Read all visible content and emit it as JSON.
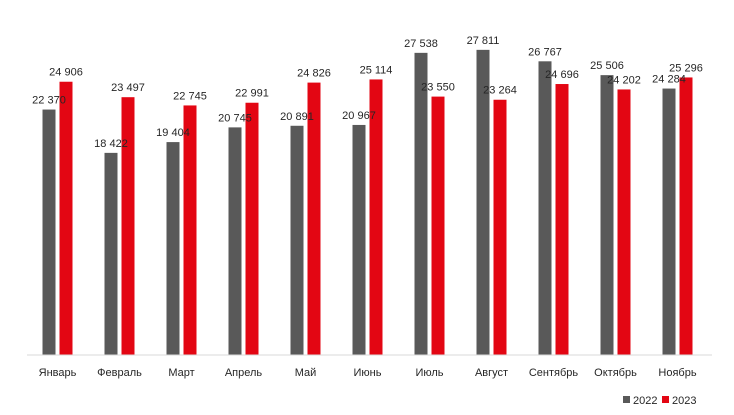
{
  "chart_data": {
    "type": "bar",
    "categories": [
      "Январь",
      "Февраль",
      "Март",
      "Апрель",
      "Май",
      "Июнь",
      "Июль",
      "Август",
      "Сентябрь",
      "Октябрь",
      "Ноябрь"
    ],
    "series": [
      {
        "name": "2022",
        "color": "#595959",
        "values": [
          22370,
          18422,
          19404,
          20745,
          20891,
          20967,
          27538,
          27811,
          26767,
          25506,
          24284
        ],
        "labels": [
          "22 370",
          "18 422",
          "19 404",
          "20 745",
          "20 891",
          "20 967",
          "27 538",
          "27 811",
          "26 767",
          "25 506",
          "24 284"
        ]
      },
      {
        "name": "2023",
        "color": "#e30613",
        "values": [
          24906,
          23497,
          22745,
          22991,
          24826,
          25114,
          23550,
          23264,
          24696,
          24202,
          25296
        ],
        "labels": [
          "24 906",
          "23 497",
          "22 745",
          "22 991",
          "24 826",
          "25 114",
          "23 550",
          "23 264",
          "24 696",
          "24 202",
          "25 296"
        ]
      }
    ],
    "ylim": [
      0,
      28800
    ],
    "grid": false,
    "legend_position": "bottom-right",
    "title": "",
    "xlabel": "",
    "ylabel": ""
  }
}
